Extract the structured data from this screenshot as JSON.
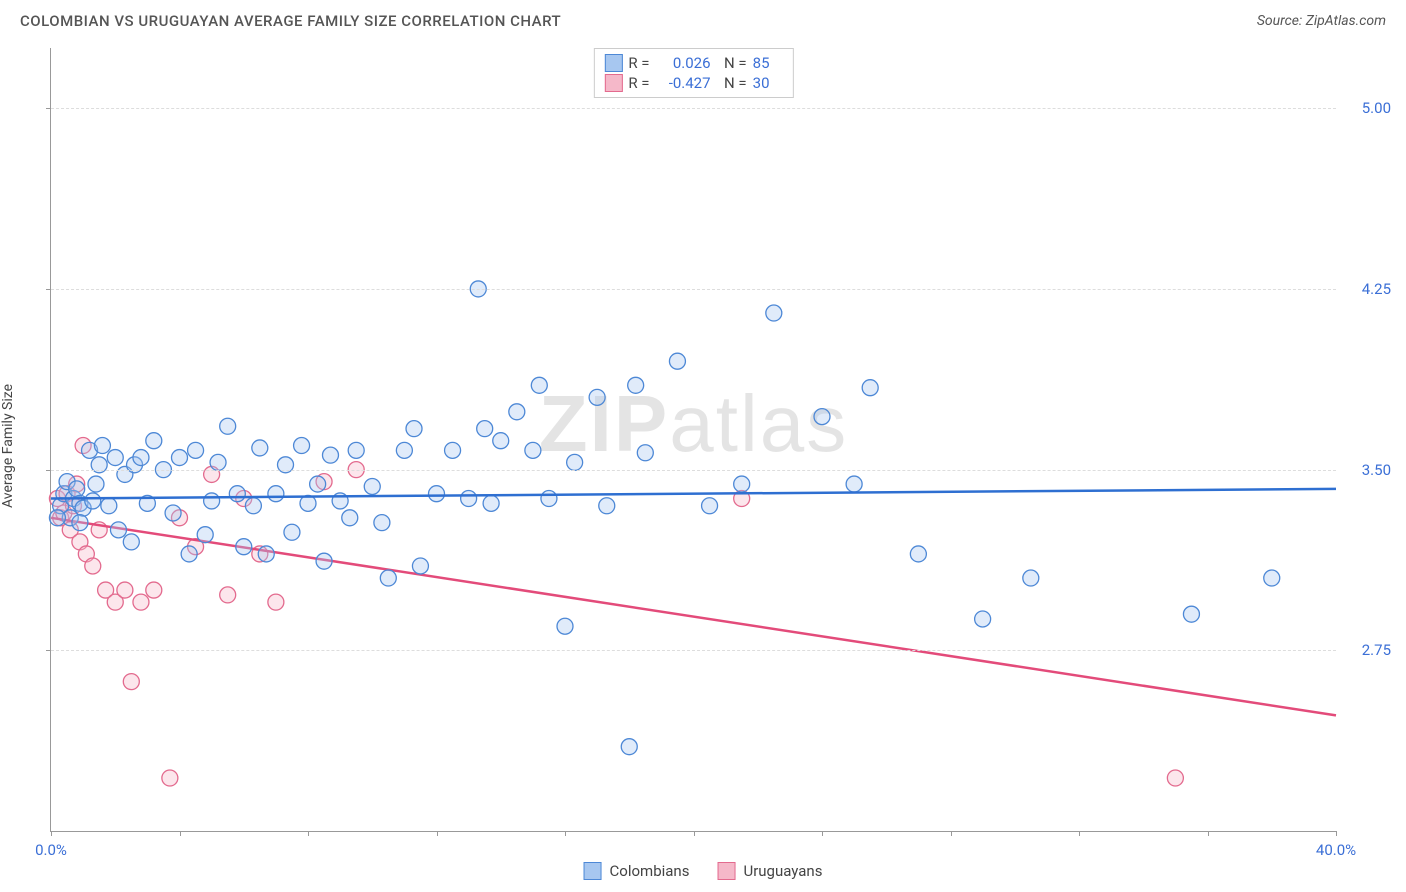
{
  "header": {
    "title": "COLOMBIAN VS URUGUAYAN AVERAGE FAMILY SIZE CORRELATION CHART",
    "source_prefix": "Source: ",
    "source_name": "ZipAtlas.com"
  },
  "watermark": {
    "part1": "ZIP",
    "part2": "atlas"
  },
  "chart": {
    "type": "scatter",
    "y_axis_label": "Average Family Size",
    "x_range": [
      0,
      40
    ],
    "y_range": [
      2.0,
      5.25
    ],
    "x_tick_label_left": "0.0%",
    "x_tick_label_right": "40.0%",
    "x_ticks": [
      0,
      4,
      8,
      12,
      16,
      20,
      24,
      28,
      32,
      36,
      40
    ],
    "y_ticks": [
      {
        "v": 2.75,
        "label": "2.75"
      },
      {
        "v": 3.5,
        "label": "3.50"
      },
      {
        "v": 4.25,
        "label": "4.25"
      },
      {
        "v": 5.0,
        "label": "5.00"
      }
    ],
    "grid_color": "#dddddd",
    "axis_color": "#999999",
    "background_color": "#ffffff",
    "tick_label_color": "#3b6fd6",
    "title_fontsize": 15,
    "label_fontsize": 14,
    "tick_fontsize": 15,
    "marker_radius": 8,
    "marker_fill_opacity": 0.35,
    "marker_stroke_width": 1.3,
    "regression_line_width": 2.5
  },
  "series": {
    "colombians": {
      "label": "Colombians",
      "color_fill": "#a7c7f0",
      "color_stroke": "#4d88d6",
      "line_color": "#2e6fd1",
      "R": "0.026",
      "N": "85",
      "regression": {
        "x1": 0,
        "y1": 3.38,
        "x2": 40,
        "y2": 3.42
      },
      "points": [
        [
          0.3,
          3.35
        ],
        [
          0.4,
          3.4
        ],
        [
          0.5,
          3.45
        ],
        [
          0.6,
          3.3
        ],
        [
          0.7,
          3.38
        ],
        [
          0.8,
          3.42
        ],
        [
          0.9,
          3.36
        ],
        [
          1.0,
          3.34
        ],
        [
          1.2,
          3.58
        ],
        [
          1.3,
          3.37
        ],
        [
          1.5,
          3.52
        ],
        [
          1.6,
          3.6
        ],
        [
          1.8,
          3.35
        ],
        [
          2.0,
          3.55
        ],
        [
          2.1,
          3.25
        ],
        [
          2.3,
          3.48
        ],
        [
          2.5,
          3.2
        ],
        [
          2.6,
          3.52
        ],
        [
          2.8,
          3.55
        ],
        [
          3.0,
          3.36
        ],
        [
          3.2,
          3.62
        ],
        [
          3.5,
          3.5
        ],
        [
          3.8,
          3.32
        ],
        [
          4.0,
          3.55
        ],
        [
          4.3,
          3.15
        ],
        [
          4.5,
          3.58
        ],
        [
          4.8,
          3.23
        ],
        [
          5.0,
          3.37
        ],
        [
          5.2,
          3.53
        ],
        [
          5.5,
          3.68
        ],
        [
          5.8,
          3.4
        ],
        [
          6.0,
          3.18
        ],
        [
          6.3,
          3.35
        ],
        [
          6.5,
          3.59
        ],
        [
          6.7,
          3.15
        ],
        [
          7.0,
          3.4
        ],
        [
          7.3,
          3.52
        ],
        [
          7.5,
          3.24
        ],
        [
          7.8,
          3.6
        ],
        [
          8.0,
          3.36
        ],
        [
          8.3,
          3.44
        ],
        [
          8.5,
          3.12
        ],
        [
          8.7,
          3.56
        ],
        [
          9.0,
          3.37
        ],
        [
          9.3,
          3.3
        ],
        [
          9.5,
          3.58
        ],
        [
          10.0,
          3.43
        ],
        [
          10.3,
          3.28
        ],
        [
          10.5,
          3.05
        ],
        [
          11.0,
          3.58
        ],
        [
          11.3,
          3.67
        ],
        [
          11.5,
          3.1
        ],
        [
          12.0,
          3.4
        ],
        [
          12.5,
          3.58
        ],
        [
          13.0,
          3.38
        ],
        [
          13.3,
          4.25
        ],
        [
          13.5,
          3.67
        ],
        [
          13.7,
          3.36
        ],
        [
          14.0,
          3.62
        ],
        [
          14.5,
          3.74
        ],
        [
          15.0,
          3.58
        ],
        [
          15.2,
          3.85
        ],
        [
          15.5,
          3.38
        ],
        [
          16.0,
          2.85
        ],
        [
          16.3,
          3.53
        ],
        [
          17.0,
          3.8
        ],
        [
          17.3,
          3.35
        ],
        [
          18.0,
          2.35
        ],
        [
          18.2,
          3.85
        ],
        [
          18.5,
          3.57
        ],
        [
          19.5,
          3.95
        ],
        [
          20.5,
          3.35
        ],
        [
          21.5,
          3.44
        ],
        [
          22.5,
          4.15
        ],
        [
          24.0,
          3.72
        ],
        [
          25.0,
          3.44
        ],
        [
          25.5,
          3.84
        ],
        [
          27.0,
          3.15
        ],
        [
          29.0,
          2.88
        ],
        [
          30.5,
          3.05
        ],
        [
          35.5,
          2.9
        ],
        [
          38.0,
          3.05
        ],
        [
          0.2,
          3.3
        ],
        [
          0.9,
          3.28
        ],
        [
          1.4,
          3.44
        ]
      ]
    },
    "uruguayans": {
      "label": "Uruguayans",
      "color_fill": "#f5b8c9",
      "color_stroke": "#e36a8e",
      "line_color": "#e34b7a",
      "R": "-0.427",
      "N": "30",
      "regression": {
        "x1": 0,
        "y1": 3.3,
        "x2": 40,
        "y2": 2.48
      },
      "points": [
        [
          0.2,
          3.38
        ],
        [
          0.3,
          3.3
        ],
        [
          0.4,
          3.32
        ],
        [
          0.5,
          3.4
        ],
        [
          0.6,
          3.25
        ],
        [
          0.7,
          3.35
        ],
        [
          0.8,
          3.44
        ],
        [
          0.9,
          3.2
        ],
        [
          1.0,
          3.6
        ],
        [
          1.1,
          3.15
        ],
        [
          1.3,
          3.1
        ],
        [
          1.5,
          3.25
        ],
        [
          1.7,
          3.0
        ],
        [
          2.0,
          2.95
        ],
        [
          2.3,
          3.0
        ],
        [
          2.5,
          2.62
        ],
        [
          2.8,
          2.95
        ],
        [
          3.2,
          3.0
        ],
        [
          3.7,
          2.22
        ],
        [
          4.0,
          3.3
        ],
        [
          4.5,
          3.18
        ],
        [
          5.0,
          3.48
        ],
        [
          5.5,
          2.98
        ],
        [
          6.0,
          3.38
        ],
        [
          6.5,
          3.15
        ],
        [
          7.0,
          2.95
        ],
        [
          8.5,
          3.45
        ],
        [
          9.5,
          3.5
        ],
        [
          21.5,
          3.38
        ],
        [
          35.0,
          2.22
        ]
      ]
    }
  },
  "legend": {
    "item1": "Colombians",
    "item2": "Uruguayans"
  }
}
